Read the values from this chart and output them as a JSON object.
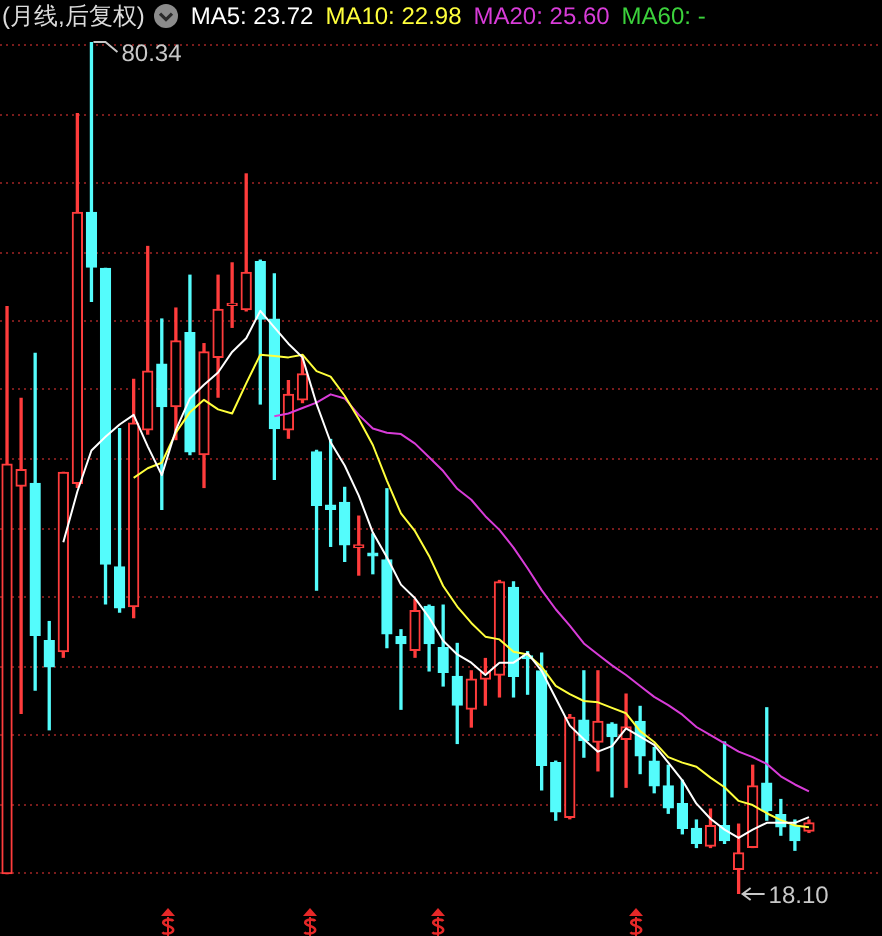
{
  "chart_data": {
    "type": "candlestick",
    "title": "(月线,后复权)",
    "categories": [
      null,
      null,
      null,
      null,
      null,
      null,
      null,
      null,
      null,
      null,
      null,
      null,
      null,
      null,
      null,
      null,
      null,
      null,
      null,
      null,
      null,
      null,
      null,
      null,
      null,
      null,
      null,
      null,
      null,
      null,
      null,
      null,
      null,
      null,
      null,
      null,
      null,
      null,
      null,
      null,
      null,
      null,
      null,
      null,
      null,
      null,
      null,
      null,
      null,
      null,
      null,
      null,
      null,
      null,
      null,
      null,
      null,
      null
    ],
    "ohlc": [
      [
        19.6,
        61.0,
        19.6,
        49.5
      ],
      [
        47.9,
        54.3,
        31.3,
        49.1
      ],
      [
        48.1,
        57.6,
        33.0,
        37.0
      ],
      [
        36.6,
        38.0,
        30.1,
        34.7
      ],
      [
        35.8,
        48.9,
        35.4,
        48.9
      ],
      [
        48.1,
        75.1,
        47.8,
        67.9
      ],
      [
        67.9,
        80.34,
        61.4,
        63.9
      ],
      [
        63.8,
        63.8,
        39.3,
        42.2
      ],
      [
        42.0,
        52.1,
        38.7,
        39.0
      ],
      [
        39.1,
        55.7,
        38.3,
        52.5
      ],
      [
        52.0,
        65.4,
        51.7,
        56.3
      ],
      [
        56.8,
        60.1,
        46.2,
        53.7
      ],
      [
        53.7,
        60.9,
        51.3,
        58.5
      ],
      [
        59.1,
        63.3,
        50.2,
        50.4
      ],
      [
        50.2,
        58.3,
        47.8,
        57.7
      ],
      [
        57.3,
        63.3,
        54.4,
        60.8
      ],
      [
        61.1,
        64.2,
        59.5,
        61.2
      ],
      [
        60.8,
        70.7,
        60.7,
        63.5
      ],
      [
        64.3,
        64.4,
        53.9,
        60.1
      ],
      [
        60.1,
        63.4,
        48.4,
        52.1
      ],
      [
        52.0,
        55.6,
        51.4,
        54.6
      ],
      [
        54.2,
        57.4,
        54.0,
        56.1
      ],
      [
        50.4,
        50.5,
        40.3,
        46.5
      ],
      [
        46.5,
        51.3,
        43.5,
        46.2
      ],
      [
        46.7,
        47.8,
        42.4,
        43.6
      ],
      [
        43.4,
        45.7,
        41.4,
        43.6
      ],
      [
        43.0,
        44.4,
        41.5,
        42.8
      ],
      [
        42.5,
        47.7,
        36.1,
        37.1
      ],
      [
        36.9,
        37.4,
        31.6,
        36.4
      ],
      [
        35.9,
        39.6,
        35.4,
        38.8
      ],
      [
        39.1,
        39.2,
        34.4,
        36.4
      ],
      [
        36.1,
        39.2,
        33.3,
        34.3
      ],
      [
        34.0,
        36.4,
        29.1,
        31.9
      ],
      [
        31.6,
        34.4,
        30.3,
        33.8
      ],
      [
        33.8,
        35.3,
        31.9,
        34.3
      ],
      [
        34.1,
        41.0,
        32.5,
        40.9
      ],
      [
        40.5,
        40.9,
        32.5,
        34.0
      ],
      [
        35.5,
        35.8,
        32.7,
        35.3
      ],
      [
        34.4,
        35.7,
        25.7,
        27.5
      ],
      [
        27.7,
        27.8,
        23.5,
        24.1
      ],
      [
        23.7,
        31.2,
        23.6,
        31.0
      ],
      [
        30.8,
        34.4,
        28.1,
        29.3
      ],
      [
        29.2,
        34.4,
        27.1,
        30.7
      ],
      [
        30.5,
        30.6,
        25.2,
        29.6
      ],
      [
        29.4,
        32.7,
        25.9,
        30.3
      ],
      [
        30.7,
        31.8,
        26.9,
        28.2
      ],
      [
        27.8,
        28.8,
        25.5,
        26.0
      ],
      [
        26.0,
        27.5,
        24.0,
        24.4
      ],
      [
        24.7,
        26.4,
        22.5,
        22.9
      ],
      [
        22.9,
        23.5,
        21.5,
        21.8
      ],
      [
        21.6,
        24.3,
        21.5,
        23.1
      ],
      [
        23.1,
        29.2,
        21.8,
        22.0
      ],
      [
        19.9,
        23.2,
        18.1,
        21.1
      ],
      [
        21.5,
        27.5,
        21.5,
        26.0
      ],
      [
        26.2,
        31.7,
        23.5,
        24.2
      ],
      [
        23.9,
        25.0,
        22.4,
        23.0
      ],
      [
        23.1,
        23.5,
        21.3,
        22.0
      ],
      [
        22.7,
        23.5,
        22.6,
        23.3
      ]
    ],
    "colors": [
      "#ff3c3c",
      "#ff3c3c",
      "#54fcfc",
      "#54fcfc",
      "#ff3c3c",
      "#ff3c3c",
      "#54fcfc",
      "#54fcfc",
      "#54fcfc",
      "#ff3c3c",
      "#ff3c3c",
      "#54fcfc",
      "#ff3c3c",
      "#54fcfc",
      "#ff3c3c",
      "#ff3c3c",
      "#ff3c3c",
      "#ff3c3c",
      "#54fcfc",
      "#54fcfc",
      "#ff3c3c",
      "#ff3c3c",
      "#54fcfc",
      "#54fcfc",
      "#54fcfc",
      "#ff3c3c",
      "#54fcfc",
      "#54fcfc",
      "#54fcfc",
      "#ff3c3c",
      "#54fcfc",
      "#54fcfc",
      "#54fcfc",
      "#ff3c3c",
      "#ff3c3c",
      "#ff3c3c",
      "#54fcfc",
      "#54fcfc",
      "#54fcfc",
      "#54fcfc",
      "#ff3c3c",
      "#54fcfc",
      "#ff3c3c",
      "#54fcfc",
      "#ff3c3c",
      "#54fcfc",
      "#54fcfc",
      "#54fcfc",
      "#54fcfc",
      "#54fcfc",
      "#ff3c3c",
      "#54fcfc",
      "#ff3c3c",
      "#ff3c3c",
      "#54fcfc",
      "#54fcfc",
      "#54fcfc",
      "#ff3c3c"
    ],
    "series": [
      {
        "name": "MA5: 23.72",
        "type": "line",
        "color": "#ffffff",
        "values": [
          null,
          null,
          null,
          null,
          43.8,
          47.5,
          50.5,
          51.5,
          52.4,
          53.1,
          50.8,
          48.7,
          52.0,
          54.3,
          55.3,
          56.2,
          57.7,
          58.7,
          60.7,
          59.5,
          58.3,
          57.3,
          53.9,
          51.1,
          49.4,
          47.2,
          44.5,
          42.7,
          40.7,
          39.7,
          38.3,
          36.6,
          35.6,
          35.0,
          34.1,
          35.0,
          35.0,
          35.7,
          34.4,
          32.4,
          30.4,
          29.4,
          28.5,
          28.9,
          30.2,
          29.6,
          29.0,
          27.7,
          26.4,
          24.7,
          23.6,
          22.8,
          22.2,
          22.8,
          23.3,
          23.3,
          23.3,
          23.72
        ]
      },
      {
        "name": "MA10: 22.98",
        "type": "line",
        "color": "#ffff3c",
        "values": [
          null,
          null,
          null,
          null,
          null,
          null,
          null,
          null,
          null,
          48.5,
          49.2,
          49.6,
          51.8,
          53.3,
          54.2,
          53.5,
          53.2,
          55.4,
          57.5,
          57.4,
          57.3,
          57.5,
          56.3,
          55.9,
          54.5,
          52.8,
          50.9,
          48.3,
          45.9,
          44.6,
          42.8,
          40.6,
          39.1,
          37.9,
          36.9,
          36.7,
          35.8,
          35.6,
          34.7,
          33.3,
          32.7,
          32.2,
          32.1,
          31.7,
          31.3,
          30.0,
          29.2,
          28.1,
          27.7,
          27.4,
          26.6,
          25.9,
          24.9,
          24.6,
          24.0,
          23.5,
          23.1,
          22.98
        ]
      },
      {
        "name": "MA20: 25.60",
        "type": "line",
        "color": "#d83cd8",
        "values": [
          null,
          null,
          null,
          null,
          null,
          null,
          null,
          null,
          null,
          null,
          null,
          null,
          null,
          null,
          null,
          null,
          null,
          null,
          null,
          53.0,
          53.2,
          53.6,
          54.0,
          54.6,
          54.3,
          53.1,
          52.1,
          51.8,
          51.7,
          51.0,
          50.0,
          49.0,
          47.7,
          46.9,
          45.7,
          44.7,
          43.4,
          41.9,
          40.3,
          38.9,
          37.7,
          36.4,
          35.6,
          34.8,
          34.1,
          33.3,
          32.5,
          31.9,
          31.2,
          30.3,
          29.7,
          29.1,
          28.5,
          28.1,
          27.6,
          26.7,
          26.1,
          25.6
        ]
      },
      {
        "name": "MA60: -",
        "type": "line",
        "color": "#3cd23c",
        "values": [
          null,
          null,
          null,
          null,
          null,
          null,
          null,
          null,
          null,
          null,
          null,
          null,
          null,
          null,
          null,
          null,
          null,
          null,
          null,
          null,
          null,
          null,
          null,
          null,
          null,
          null,
          null,
          null,
          null,
          null,
          null,
          null,
          null,
          null,
          null,
          null,
          null,
          null,
          null,
          null,
          null,
          null,
          null,
          null,
          null,
          null,
          null,
          null,
          null,
          null,
          null,
          null,
          null,
          null,
          null,
          null,
          null,
          null
        ]
      }
    ],
    "yticks": [
      {
        "value": 80.2,
        "label": null
      },
      {
        "value": 75.1,
        "label": null
      },
      {
        "value": 70.1,
        "label": null
      },
      {
        "value": 65.0,
        "label": null
      },
      {
        "value": 60.0,
        "label": null
      },
      {
        "value": 55.0,
        "label": null
      },
      {
        "value": 49.9,
        "label": null
      },
      {
        "value": 44.9,
        "label": null
      },
      {
        "value": 39.9,
        "label": null
      },
      {
        "value": 34.8,
        "label": null
      },
      {
        "value": 29.8,
        "label": null
      },
      {
        "value": 24.7,
        "label": null
      },
      {
        "value": 19.7,
        "label": null
      }
    ],
    "grid": "y",
    "legend": "top",
    "tick_labels": false,
    "marker": "none",
    "line_style": "solid",
    "annotations": [
      "80.34",
      "18.10"
    ]
  }
}
